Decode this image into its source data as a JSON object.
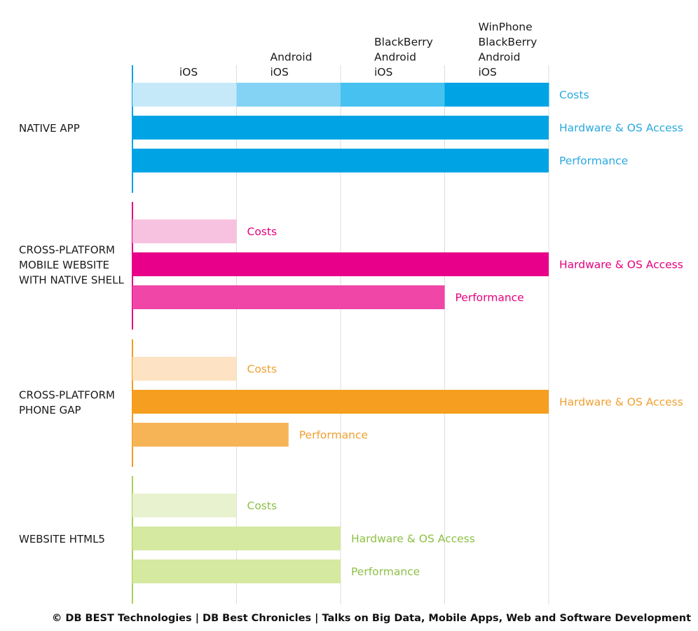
{
  "chart_data": {
    "type": "bar",
    "columns": [
      [
        "iOS"
      ],
      [
        "Android",
        "iOS"
      ],
      [
        "BlackBerry",
        "Android",
        "iOS"
      ],
      [
        "WinPhone",
        "BlackBerry",
        "Android",
        "iOS"
      ]
    ],
    "xlim": [
      0,
      4
    ],
    "grid": true,
    "groups": [
      {
        "label": [
          "NATIVE APP"
        ],
        "color": "#00a4e4",
        "label_color": "#29a9e0",
        "bars": [
          {
            "label": "Costs",
            "value": 4,
            "segments": [
              "#c5e9f9",
              "#84d2f4",
              "#46c1f0",
              "#00a4e4"
            ]
          },
          {
            "label": "Hardware & OS Access",
            "value": 4,
            "color": "#00a4e4"
          },
          {
            "label": "Performance",
            "value": 4,
            "color": "#00a4e4"
          }
        ]
      },
      {
        "label": [
          "CROSS-PLATFORM",
          "MOBILE WEBSITE",
          "WITH NATIVE SHELL"
        ],
        "color": "#e5007e",
        "label_color": "#e5007e",
        "bars": [
          {
            "label": "Costs",
            "value": 1,
            "color": "#f7c1e0"
          },
          {
            "label": "Hardware & OS Access",
            "value": 4,
            "color": "#e8008a"
          },
          {
            "label": "Performance",
            "value": 3,
            "color": "#ef46a8"
          }
        ]
      },
      {
        "label": [
          "CROSS-PLATFORM",
          "PHONE GAP"
        ],
        "color": "#f39c1f",
        "label_color": "#f0a030",
        "bars": [
          {
            "label": "Costs",
            "value": 1,
            "color": "#fde3c3"
          },
          {
            "label": "Hardware & OS Access",
            "value": 4,
            "color": "#f59e1f"
          },
          {
            "label": "Performance",
            "value": 1.5,
            "color": "#f7b456"
          }
        ]
      },
      {
        "label": [
          "WEBSITE HTML5"
        ],
        "color": "#a6d05a",
        "label_color": "#8dc046",
        "bars": [
          {
            "label": "Costs",
            "value": 1,
            "color": "#e8f2cf"
          },
          {
            "label": "Hardware & OS Access",
            "value": 2,
            "color": "#d5e9a1"
          },
          {
            "label": "Performance",
            "value": 2,
            "color": "#d5e9a1"
          }
        ]
      }
    ]
  },
  "footer": "© DB BEST Technologies | DB Best Chronicles | Talks on Big Data, Mobile Apps, Web and Software Development"
}
